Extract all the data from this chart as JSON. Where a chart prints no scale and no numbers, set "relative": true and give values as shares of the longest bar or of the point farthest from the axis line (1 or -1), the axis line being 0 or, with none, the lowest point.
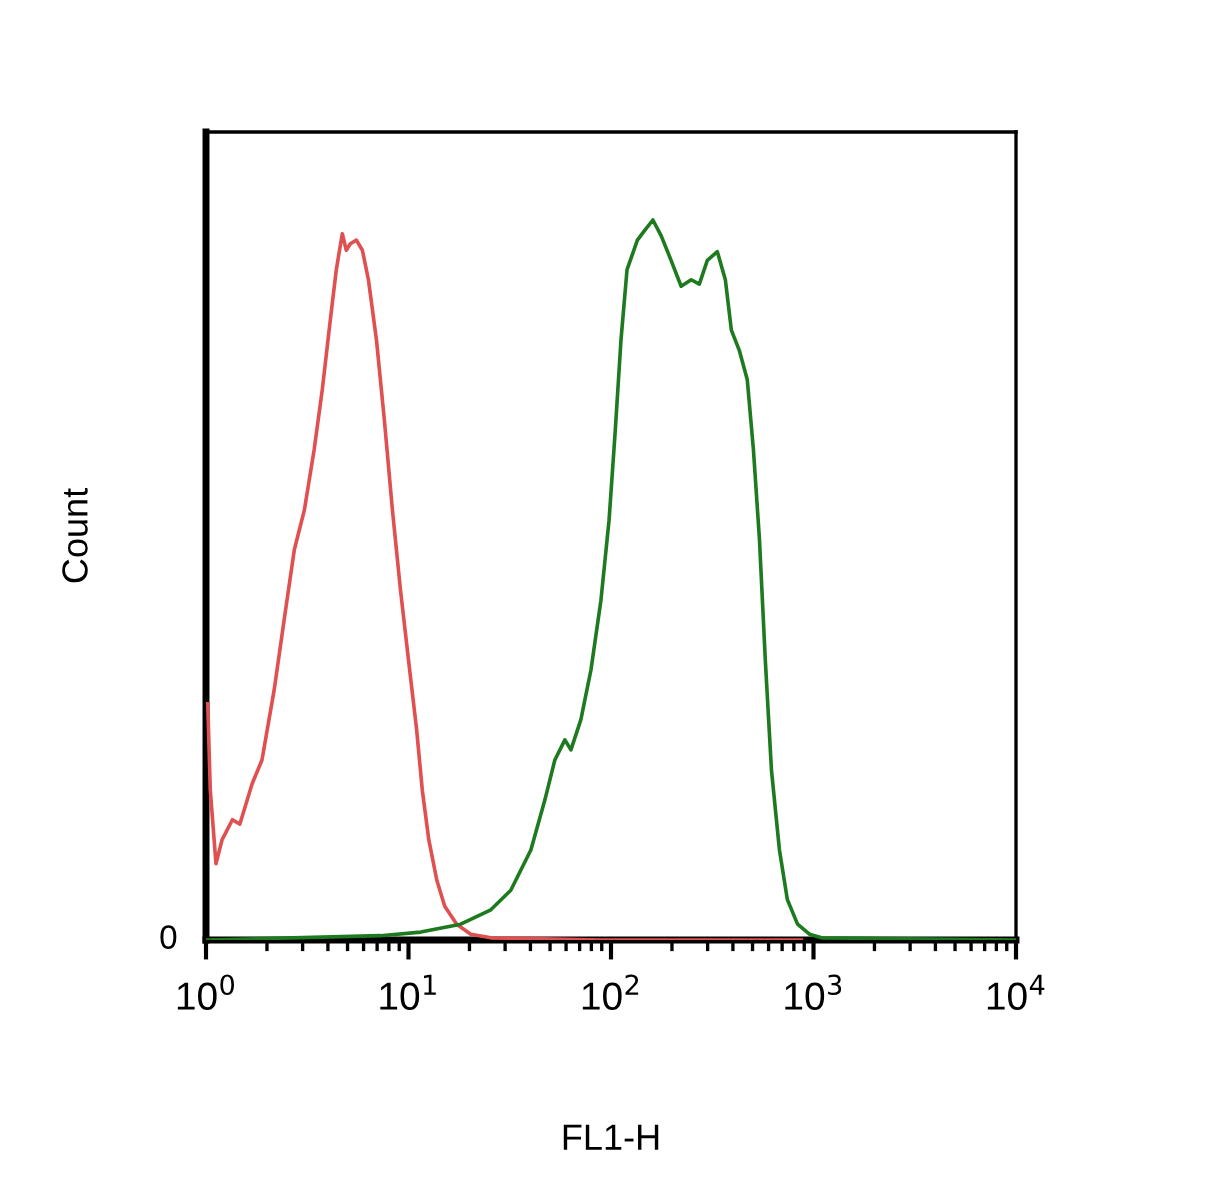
{
  "chart_data": {
    "type": "line",
    "relative": true,
    "xlabel": "FL1-H",
    "ylabel": "Count",
    "log": "x",
    "xlim": [
      1,
      10000
    ],
    "xticks": [
      {
        "value": 1,
        "label": "10$^{0}$"
      },
      {
        "value": 10,
        "label": "10$^{1}$"
      },
      {
        "value": 100,
        "label": "10$^{2}$"
      },
      {
        "value": 1000,
        "label": "10$^{3}$"
      },
      {
        "value": 10000,
        "label": "10$^{4}$"
      }
    ],
    "annotations": [
      "0"
    ],
    "grid": false,
    "legend": false,
    "line_style": "solid",
    "marker": "none",
    "series": [
      {
        "color": "#e05050",
        "x": [
          1.02,
          1.05,
          1.12,
          1.2,
          1.35,
          1.47,
          1.69,
          1.89,
          2.17,
          2.43,
          2.73,
          3.06,
          3.42,
          3.75,
          4.11,
          4.4,
          4.71,
          4.93,
          5.16,
          5.53,
          5.92,
          6.34,
          6.95,
          7.6,
          8.33,
          9.13,
          10,
          10.97,
          11.7,
          12.6,
          13.8,
          15.1,
          17.3,
          20.3,
          25.5,
          89,
          871
        ],
        "values": [
          0.328,
          0.208,
          0.106,
          0.139,
          0.167,
          0.161,
          0.217,
          0.25,
          0.347,
          0.444,
          0.542,
          0.597,
          0.681,
          0.764,
          0.861,
          0.931,
          0.981,
          0.958,
          0.967,
          0.972,
          0.958,
          0.917,
          0.833,
          0.722,
          0.597,
          0.486,
          0.389,
          0.292,
          0.208,
          0.139,
          0.083,
          0.047,
          0.022,
          0.008,
          0.003,
          0,
          0
        ]
      },
      {
        "color": "#1e7a1e",
        "x": [
          1.02,
          7.27,
          11.5,
          18.1,
          25.5,
          32,
          40.2,
          47.1,
          52.8,
          59.2,
          63.4,
          71,
          79.6,
          89.2,
          97.8,
          105,
          112,
          120,
          135,
          147,
          161,
          177,
          198,
          222,
          249,
          273,
          299,
          335,
          367,
          393,
          430,
          471,
          505,
          541,
          578,
          620,
          679,
          743,
          834,
          955,
          1096,
          9900
        ],
        "values": [
          0,
          0.006,
          0.011,
          0.022,
          0.042,
          0.069,
          0.125,
          0.194,
          0.25,
          0.278,
          0.264,
          0.306,
          0.375,
          0.472,
          0.583,
          0.708,
          0.833,
          0.931,
          0.972,
          0.986,
          1,
          0.978,
          0.944,
          0.908,
          0.917,
          0.911,
          0.944,
          0.956,
          0.917,
          0.847,
          0.819,
          0.778,
          0.681,
          0.556,
          0.389,
          0.236,
          0.125,
          0.056,
          0.022,
          0.008,
          0.003,
          0
        ]
      }
    ]
  }
}
